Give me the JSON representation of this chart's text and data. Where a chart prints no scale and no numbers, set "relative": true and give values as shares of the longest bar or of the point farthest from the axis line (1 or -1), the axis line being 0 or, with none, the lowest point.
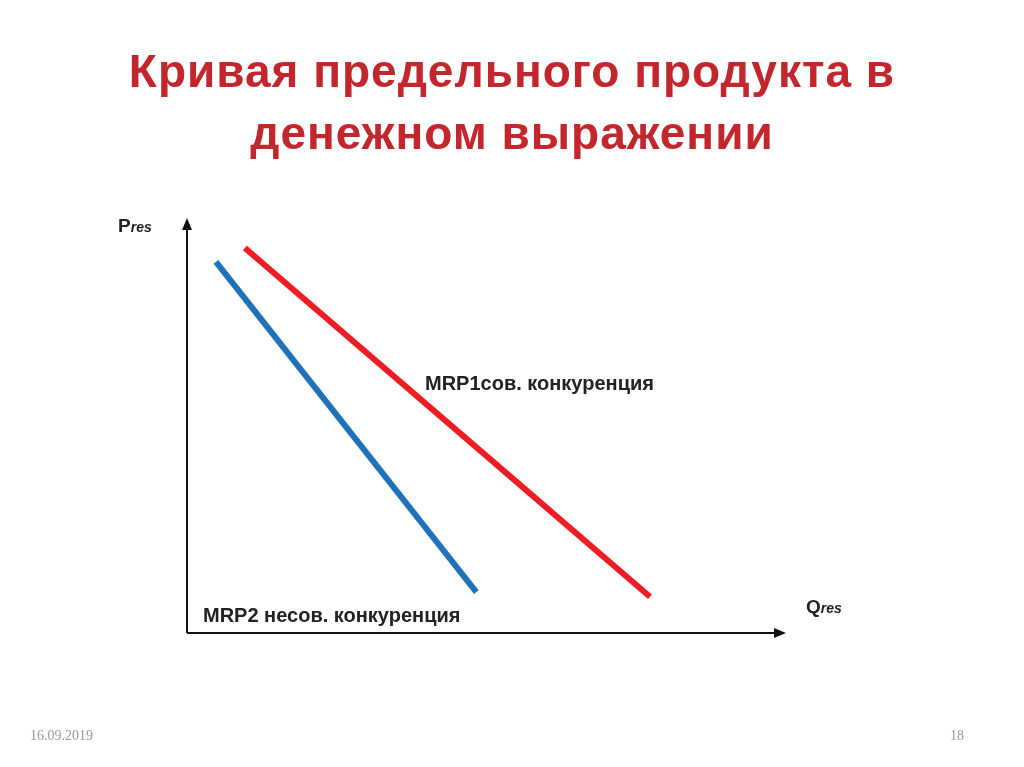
{
  "chart_data": {
    "type": "line",
    "title": "Кривая предельного продукта в денежном выражении",
    "ylabel": "P$_{res}$",
    "relative": true,
    "tick_labels": false,
    "grid": false,
    "legend": false,
    "marker": "none",
    "line_style": "solid",
    "annotations": [
      "16.09.2019",
      "18",
      "Q$_{res}$"
    ],
    "categories": [
      null,
      null,
      null,
      null,
      null,
      null,
      null,
      null,
      null,
      null,
      null,
      null,
      null,
      null,
      null,
      null,
      null,
      null,
      null,
      null,
      null,
      null,
      null,
      null,
      null,
      null,
      null,
      null,
      null,
      null,
      null,
      null,
      null
    ],
    "series": [
      {
        "name": "MRP1сов. конкуренция",
        "color": "#ee1c24",
        "values": [
          null,
          null,
          null,
          null,
          1,
          null,
          null,
          null,
          null,
          null,
          null,
          null,
          null,
          null,
          null,
          null,
          null,
          null,
          null,
          null,
          null,
          null,
          null,
          null,
          null,
          null,
          null,
          null,
          null,
          null,
          null,
          null,
          0.094
        ]
      },
      {
        "name": "MRP2 несов. конкуренция",
        "color": "#1f72b8",
        "values": [
          null,
          null,
          0.964,
          null,
          null,
          null,
          null,
          null,
          null,
          null,
          null,
          null,
          null,
          null,
          null,
          null,
          null,
          null,
          null,
          null,
          0.106,
          null,
          null,
          null,
          null,
          null,
          null,
          null,
          null,
          null,
          null,
          null,
          null
        ]
      }
    ]
  }
}
